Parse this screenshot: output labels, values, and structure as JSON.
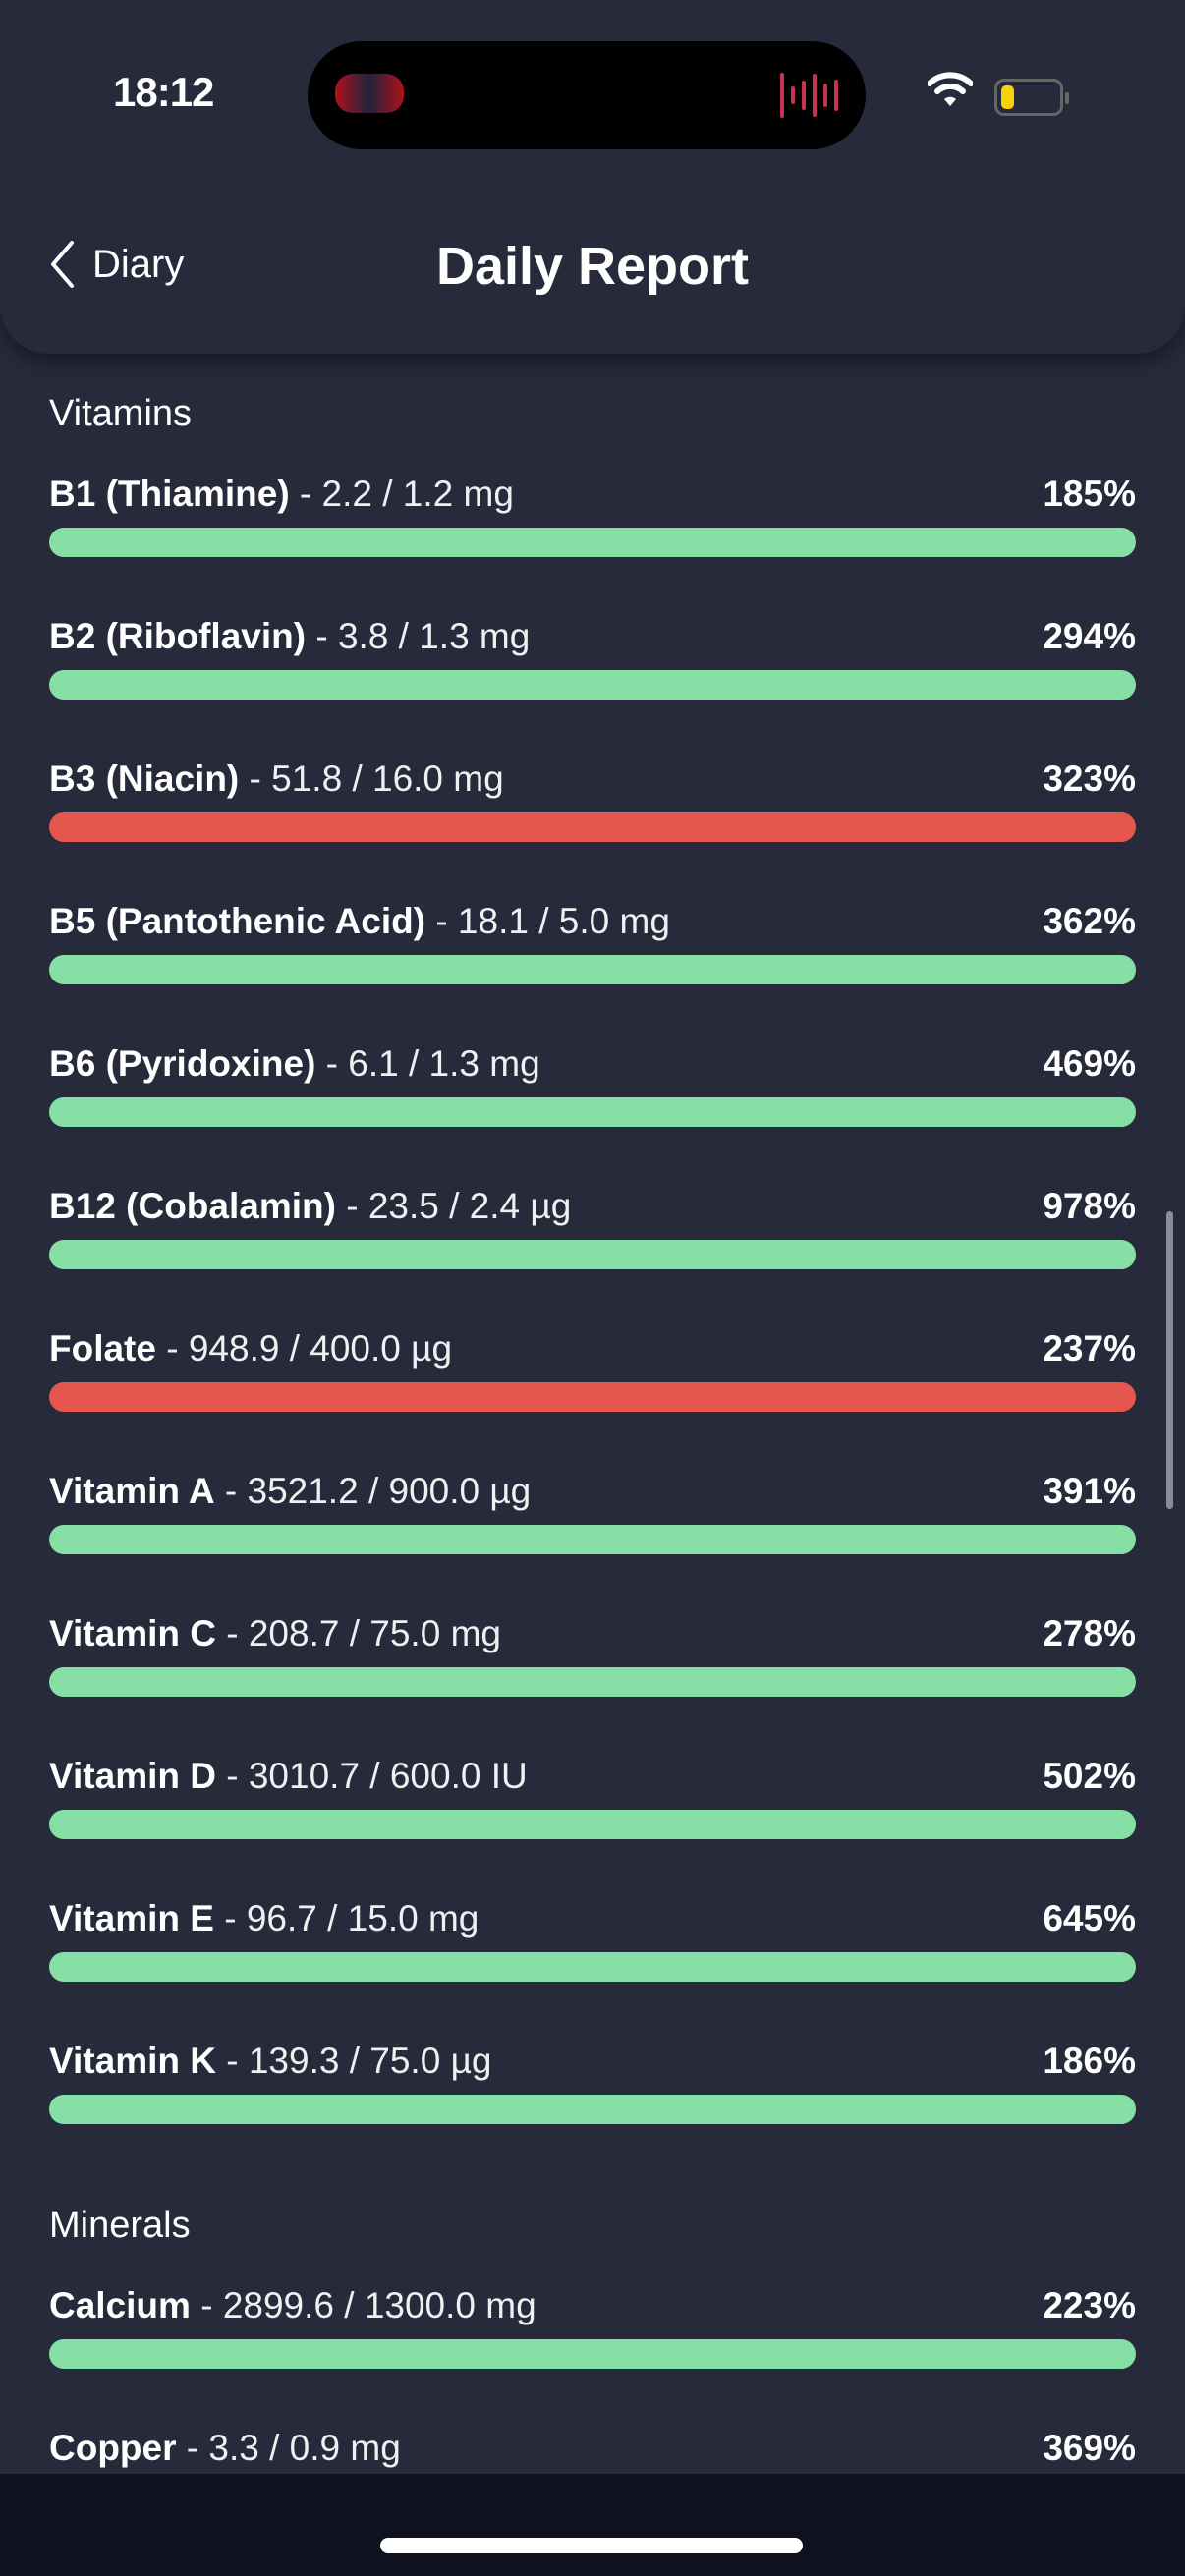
{
  "status": {
    "time": "18:12"
  },
  "header": {
    "back_label": "Diary",
    "title": "Daily Report"
  },
  "colors": {
    "ok": "#86dfa5",
    "over": "#e5564f",
    "background": "#262a3b"
  },
  "sections": [
    {
      "title": "Vitamins",
      "items": [
        {
          "name": "B1 (Thiamine)",
          "amount": " - 2.2 / 1.2 mg",
          "percent": "185%",
          "status": "ok"
        },
        {
          "name": "B2 (Riboflavin)",
          "amount": " - 3.8 / 1.3 mg",
          "percent": "294%",
          "status": "ok"
        },
        {
          "name": "B3 (Niacin)",
          "amount": " - 51.8 / 16.0 mg",
          "percent": "323%",
          "status": "over"
        },
        {
          "name": "B5 (Pantothenic Acid)",
          "amount": " - 18.1 / 5.0 mg",
          "percent": "362%",
          "status": "ok"
        },
        {
          "name": "B6 (Pyridoxine)",
          "amount": " - 6.1 / 1.3 mg",
          "percent": "469%",
          "status": "ok"
        },
        {
          "name": "B12 (Cobalamin)",
          "amount": " - 23.5 / 2.4 µg",
          "percent": "978%",
          "status": "ok"
        },
        {
          "name": "Folate",
          "amount": " - 948.9 / 400.0 µg",
          "percent": "237%",
          "status": "over"
        },
        {
          "name": "Vitamin A",
          "amount": " - 3521.2 / 900.0 µg",
          "percent": "391%",
          "status": "ok"
        },
        {
          "name": "Vitamin C",
          "amount": " - 208.7 / 75.0 mg",
          "percent": "278%",
          "status": "ok"
        },
        {
          "name": "Vitamin D",
          "amount": " - 3010.7 / 600.0 IU",
          "percent": "502%",
          "status": "ok"
        },
        {
          "name": "Vitamin E",
          "amount": " - 96.7 / 15.0 mg",
          "percent": "645%",
          "status": "ok"
        },
        {
          "name": "Vitamin K",
          "amount": " - 139.3 / 75.0 µg",
          "percent": "186%",
          "status": "ok"
        }
      ]
    },
    {
      "title": "Minerals",
      "items": [
        {
          "name": "Calcium",
          "amount": " - 2899.6 / 1300.0 mg",
          "percent": "223%",
          "status": "ok"
        },
        {
          "name": "Copper",
          "amount": " - 3.3 / 0.9 mg",
          "percent": "369%",
          "status": "ok"
        }
      ]
    }
  ]
}
